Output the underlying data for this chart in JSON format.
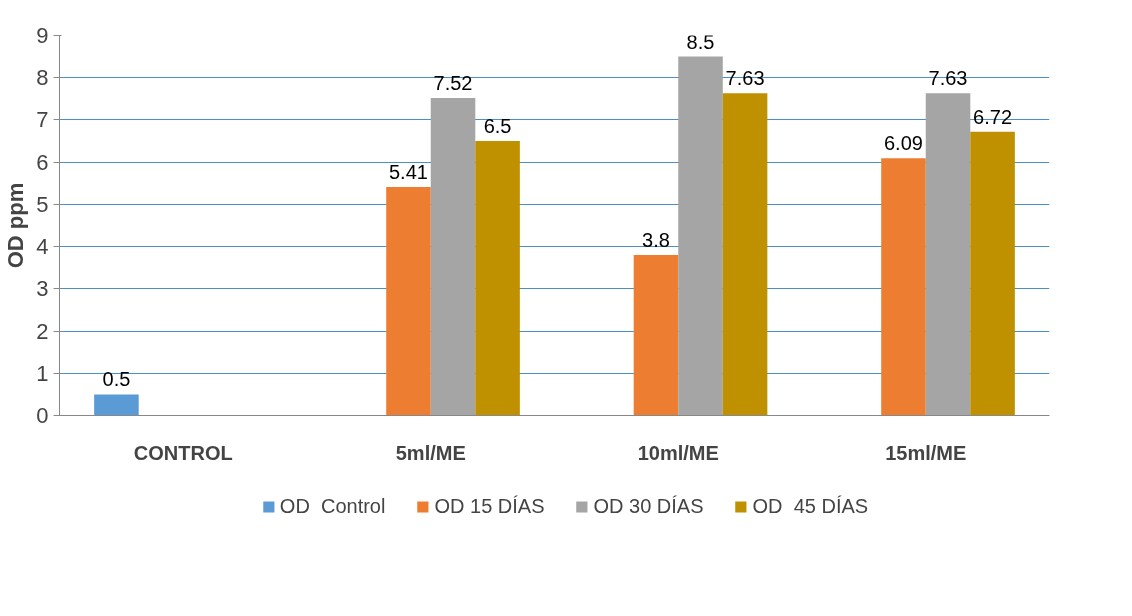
{
  "chart_data": {
    "type": "bar",
    "ylabel": "OD ppm",
    "categories": [
      "CONTROL",
      "5ml/ME",
      "10ml/ME",
      "15ml/ME"
    ],
    "series": [
      {
        "name": "OD  Control",
        "color": "#5b9bd5",
        "values": [
          0.5,
          null,
          null,
          null
        ]
      },
      {
        "name": "OD 15 DÍAS",
        "color": "#ed7d31",
        "values": [
          null,
          5.41,
          3.8,
          6.09
        ]
      },
      {
        "name": "OD 30 DÍAS",
        "color": "#a5a5a5",
        "values": [
          null,
          7.52,
          8.5,
          7.63
        ]
      },
      {
        "name": "OD  45 DÍAS",
        "color": "#bf9000",
        "values": [
          null,
          6.5,
          7.63,
          6.72
        ]
      }
    ],
    "ylim": [
      0,
      9
    ],
    "yticks": [
      0,
      1,
      2,
      3,
      4,
      5,
      6,
      7,
      8,
      9
    ],
    "grid": "y",
    "data_labels": true,
    "legend": "bottom"
  }
}
